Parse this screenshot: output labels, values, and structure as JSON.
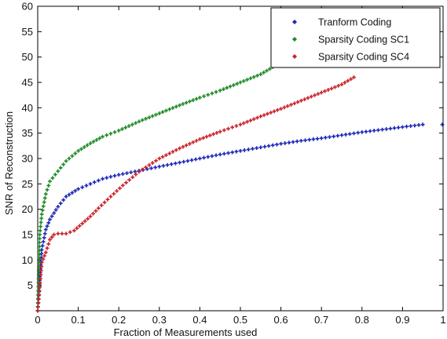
{
  "chart_data": {
    "type": "scatter",
    "title": "",
    "xlabel": "Fraction of Measurements used",
    "ylabel": "SNR of Reconstruction",
    "xlim": [
      0,
      1
    ],
    "ylim": [
      0,
      60
    ],
    "xticks": [
      0,
      0.1,
      0.2,
      0.3,
      0.4,
      0.5,
      0.6,
      0.7,
      0.8,
      0.9,
      1
    ],
    "xtick_labels": [
      "0",
      "0.1",
      "0.2",
      "0.3",
      "0.4",
      "0.5",
      "0.6",
      "0.7",
      "0.8",
      "0.9",
      "1"
    ],
    "yticks": [
      0,
      5,
      10,
      15,
      20,
      25,
      30,
      35,
      40,
      45,
      50,
      55,
      60
    ],
    "ytick_labels": [
      "",
      "5",
      "10",
      "15",
      "20",
      "25",
      "30",
      "35",
      "40",
      "45",
      "50",
      "55",
      "60"
    ],
    "grid": false,
    "legend_position": "top-right",
    "series": [
      {
        "name": "Tranform Coding",
        "color": "#1c28b4",
        "x": [
          0,
          0.01,
          0.02,
          0.03,
          0.05,
          0.07,
          0.1,
          0.13,
          0.16,
          0.2,
          0.25,
          0.3,
          0.35,
          0.4,
          0.45,
          0.5,
          0.55,
          0.6,
          0.65,
          0.7,
          0.75,
          0.8,
          0.85,
          0.9,
          0.95
        ],
        "y": [
          0,
          12,
          16,
          18,
          20.5,
          22.5,
          24,
          25,
          26,
          26.8,
          27.6,
          28.4,
          29.2,
          30,
          30.8,
          31.5,
          32.2,
          32.9,
          33.5,
          34,
          34.6,
          35.2,
          35.7,
          36.2,
          36.7
        ]
      },
      {
        "name": "Sparsity Coding SC1",
        "color": "#1d8a24",
        "x": [
          0,
          0.005,
          0.01,
          0.02,
          0.03,
          0.05,
          0.07,
          0.1,
          0.13,
          0.16,
          0.2,
          0.25,
          0.3,
          0.35,
          0.4,
          0.45,
          0.5,
          0.55,
          0.58
        ],
        "y": [
          0,
          15,
          19,
          23,
          25.5,
          27.5,
          29.5,
          31.5,
          33,
          34.3,
          35.5,
          37.3,
          38.9,
          40.5,
          42,
          43.4,
          45,
          46.6,
          48
        ]
      },
      {
        "name": "Sparsity Coding SC4",
        "color": "#c8232a",
        "x": [
          0,
          0.01,
          0.02,
          0.03,
          0.04,
          0.05,
          0.07,
          0.09,
          0.11,
          0.13,
          0.15,
          0.18,
          0.21,
          0.25,
          0.3,
          0.35,
          0.4,
          0.45,
          0.5,
          0.55,
          0.6,
          0.65,
          0.7,
          0.75,
          0.78
        ],
        "y": [
          0,
          9.5,
          11.5,
          14,
          15,
          15.2,
          15.2,
          15.8,
          17.2,
          18.6,
          20.2,
          22.5,
          24.7,
          27.4,
          30,
          32,
          33.8,
          35.3,
          36.7,
          38.3,
          39.8,
          41.4,
          43,
          44.6,
          46
        ]
      }
    ],
    "outlier_points": [
      {
        "x": 1.0,
        "y": 36.7,
        "color": "#1c28b4"
      }
    ]
  }
}
